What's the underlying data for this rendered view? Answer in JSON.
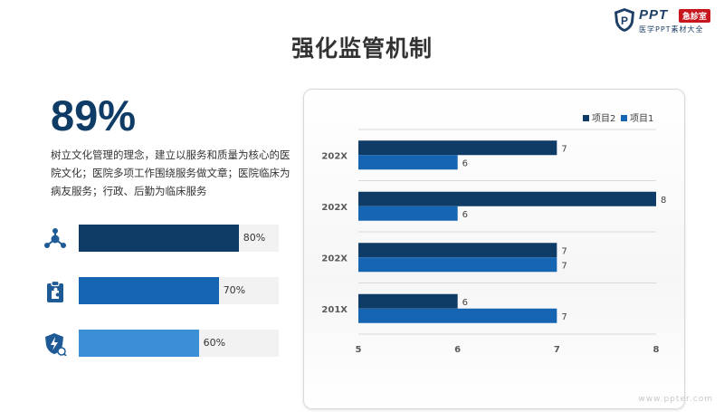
{
  "header": {
    "logo_text": "PPT",
    "logo_badge": "急診室",
    "logo_subtitle": "医学PPT素材大全",
    "title": "强化监管机制"
  },
  "highlight": {
    "percent": "89%",
    "description": "树立文化管理的理念，建立以服务和质量为核心的医院文化；医院多项工作围绕服务做文章；医院临床为病友服务；行政、后勤为临床服务"
  },
  "progress": [
    {
      "icon": "molecule-network-icon",
      "value": 80,
      "label": "80%",
      "color": "#0f3c66"
    },
    {
      "icon": "clipboard-puzzle-icon",
      "value": 70,
      "label": "70%",
      "color": "#1565b3"
    },
    {
      "icon": "shield-lightning-icon",
      "value": 60,
      "label": "60%",
      "color": "#3a8fd6"
    }
  ],
  "chart_data": {
    "type": "bar",
    "orientation": "horizontal",
    "categories": [
      "202X",
      "202X",
      "202X",
      "201X"
    ],
    "series": [
      {
        "name": "项目2",
        "values": [
          7,
          8,
          7,
          6
        ],
        "color": "#0f3c66"
      },
      {
        "name": "项目1",
        "values": [
          6,
          6,
          7,
          7
        ],
        "color": "#1565b3"
      }
    ],
    "xlim": [
      5,
      8
    ],
    "xticks": [
      "5",
      "6",
      "7",
      "8"
    ],
    "grid": true,
    "legend_position": "top-right",
    "data_labels": true
  },
  "footer": {
    "watermark": "www.ppter.com"
  }
}
